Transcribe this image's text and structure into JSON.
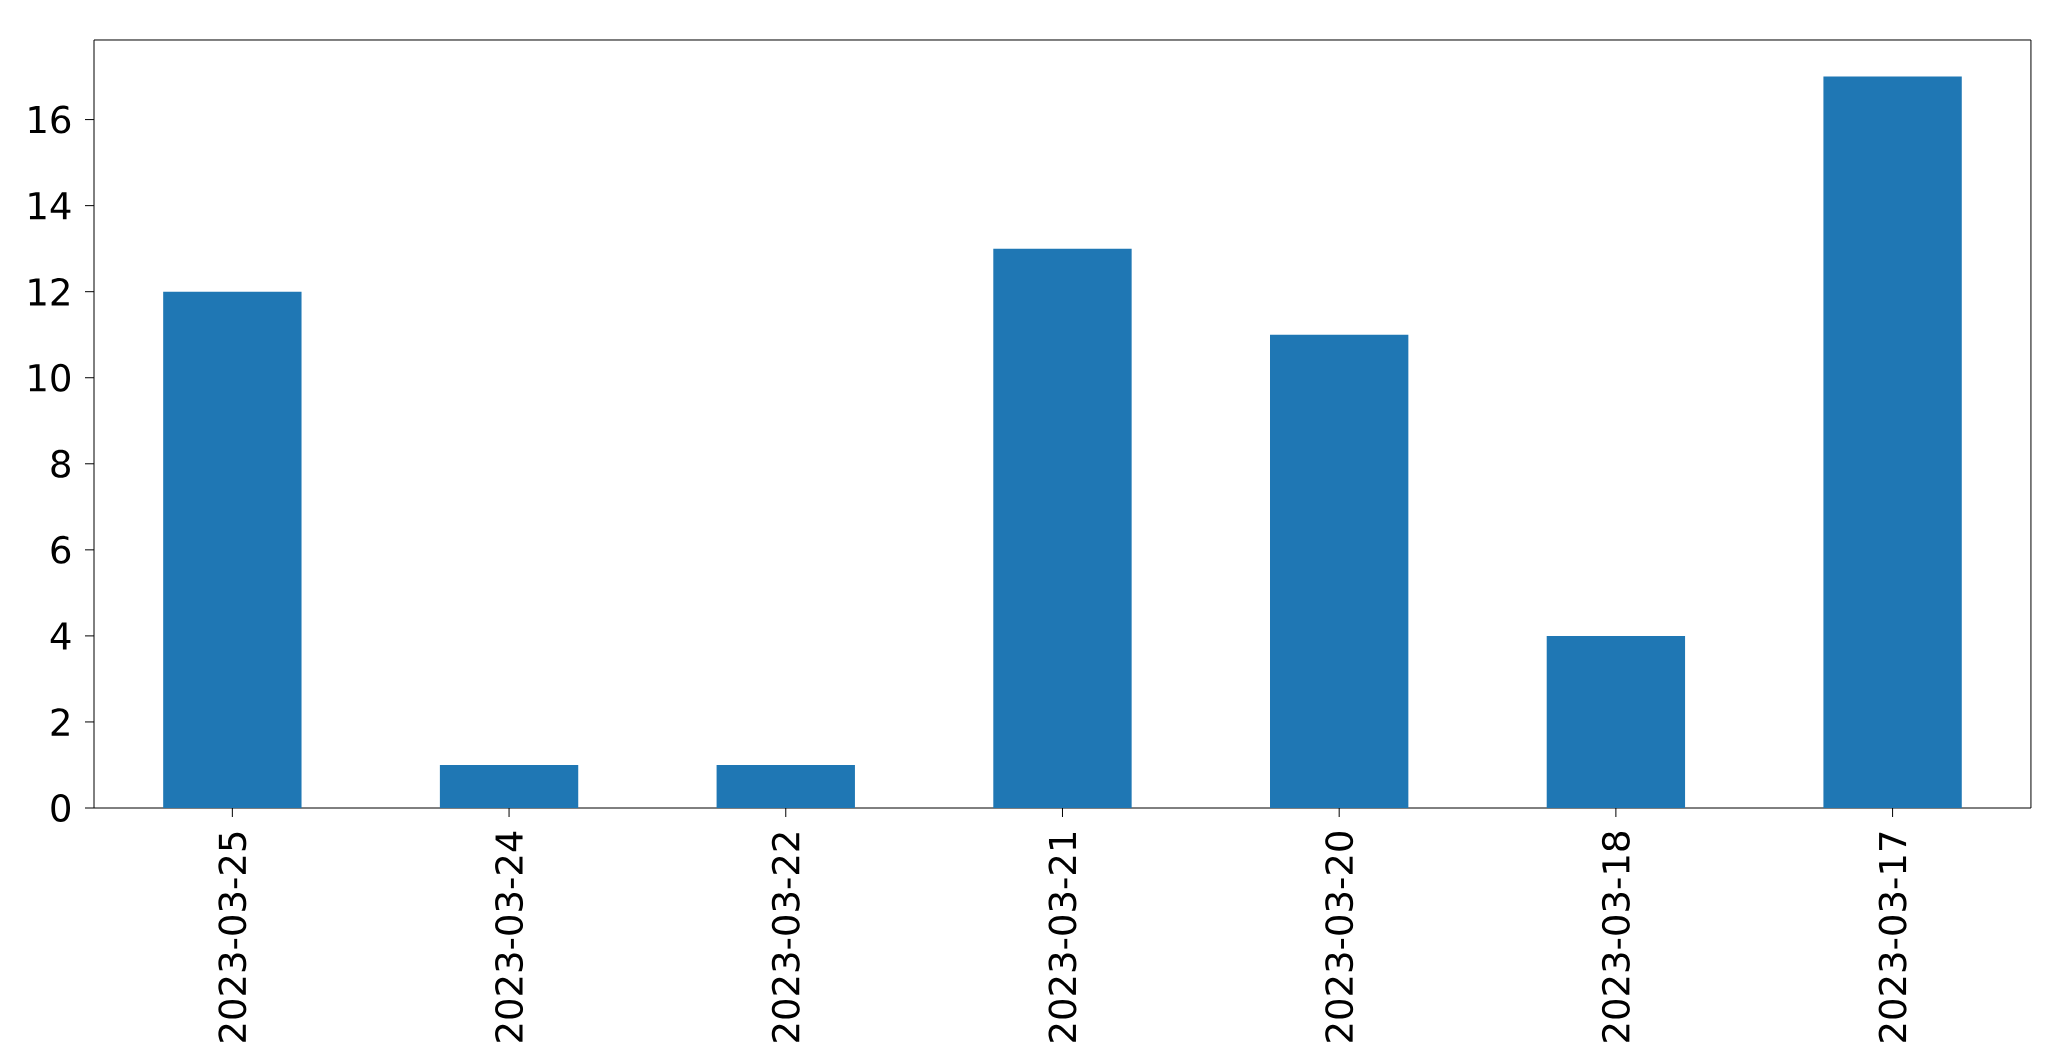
{
  "chart_data": {
    "type": "bar",
    "categories": [
      "2023-03-25",
      "2023-03-24",
      "2023-03-22",
      "2023-03-21",
      "2023-03-20",
      "2023-03-18",
      "2023-03-17"
    ],
    "values": [
      12,
      1,
      1,
      13,
      11,
      4,
      17
    ],
    "color": "#1f77b4",
    "ylim": [
      0,
      17.85
    ],
    "yticks": [
      0,
      2,
      4,
      6,
      8,
      10,
      12,
      14,
      16
    ]
  }
}
